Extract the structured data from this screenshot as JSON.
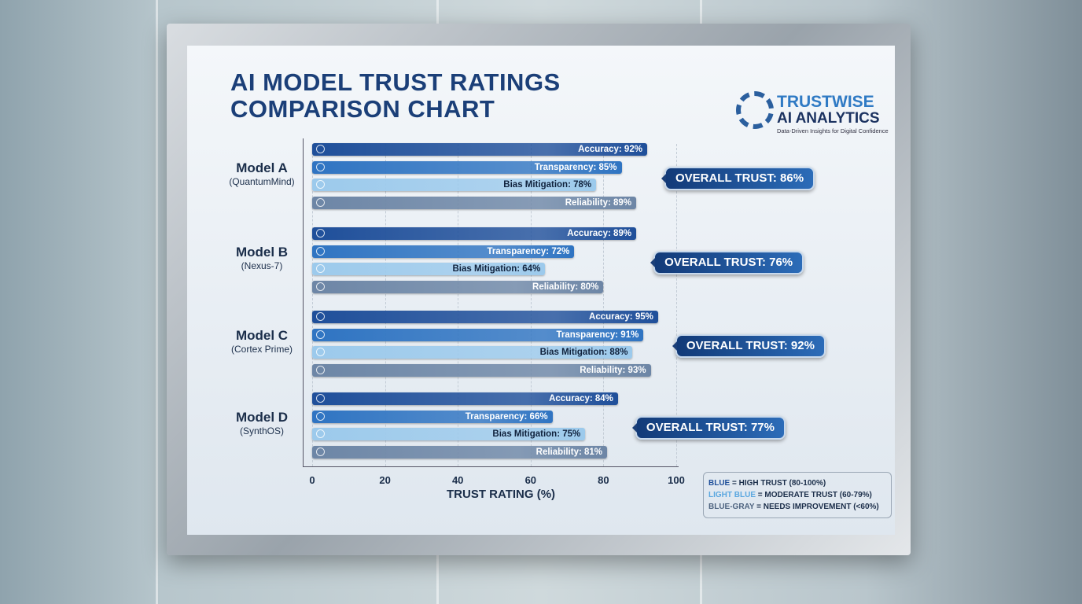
{
  "chart_data": {
    "type": "bar",
    "orientation": "horizontal",
    "title": "AI Model Trust Ratings Comparison Chart",
    "xlabel": "TRUST RATING (%)",
    "xlim": [
      0,
      100
    ],
    "xticks": [
      "0",
      "20",
      "40",
      "60",
      "80",
      "100"
    ],
    "grid": true,
    "categories": [
      {
        "name": "Model A",
        "sub": "(QuantumMind)",
        "overall": "OVERALL TRUST: 86%",
        "overall_value": 86
      },
      {
        "name": "Model B",
        "sub": "(Nexus-7)",
        "overall": "OVERALL TRUST: 76%",
        "overall_value": 76
      },
      {
        "name": "Model C",
        "sub": "(Cortex Prime)",
        "overall": "OVERALL TRUST: 92%",
        "overall_value": 92
      },
      {
        "name": "Model D",
        "sub": "(SynthOS)",
        "overall": "OVERALL TRUST: 77%",
        "overall_value": 77
      }
    ],
    "series": [
      {
        "name": "Accuracy",
        "values": [
          92,
          89,
          95,
          84
        ],
        "color": "#1f4f9a",
        "icon": "brain-icon"
      },
      {
        "name": "Transparency",
        "values": [
          85,
          72,
          91,
          66
        ],
        "color": "#2f74c2",
        "icon": "magnifier-icon"
      },
      {
        "name": "Bias Mitigation",
        "values": [
          78,
          64,
          88,
          75
        ],
        "color": "#9ccaec",
        "icon": "brain-icon"
      },
      {
        "name": "Reliability",
        "values": [
          89,
          80,
          93,
          81
        ],
        "color": "#6d86a6",
        "icon": "brain-icon"
      }
    ],
    "legend": {
      "placement": "bottom-right",
      "items": [
        {
          "key": "BLUE",
          "desc": " = HIGH TRUST (80-100%)",
          "color": "#1f4f9a"
        },
        {
          "key": "LIGHT BLUE",
          "desc": " = MODERATE TRUST (60-79%)",
          "color": "#5aa7e0"
        },
        {
          "key": "BLUE-GRAY",
          "desc": " = NEEDS IMPROVEMENT (<60%)",
          "color": "#4e6480"
        }
      ]
    }
  },
  "logo": {
    "line1": "TRUSTWISE",
    "line2": "AI ANALYTICS",
    "tagline": "Data-Driven Insights for Digital Confidence"
  }
}
